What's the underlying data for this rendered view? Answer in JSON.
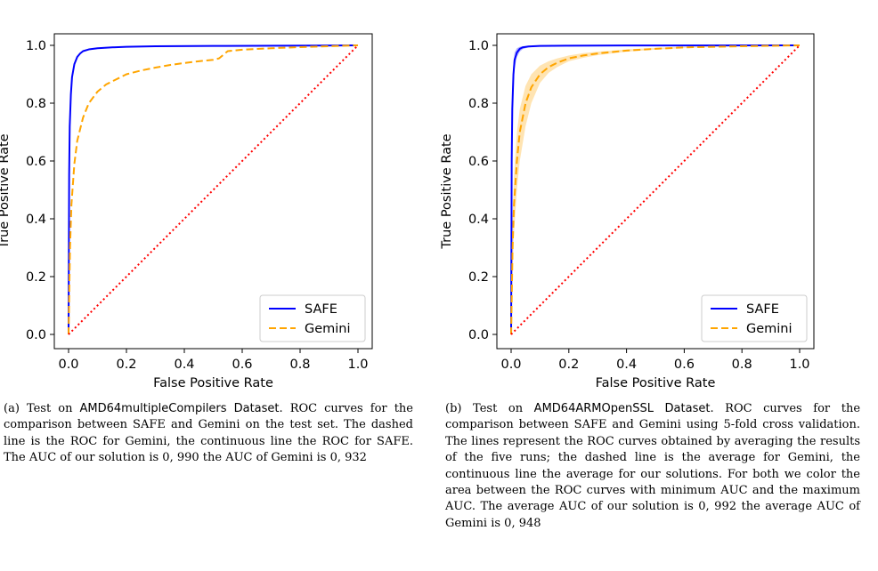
{
  "chart_data": [
    {
      "type": "line",
      "panel": "a",
      "xlabel": "False Positive Rate",
      "ylabel": "True Positive Rate",
      "xlim": [
        0.0,
        1.0
      ],
      "ylim": [
        0.0,
        1.0
      ],
      "xticks": [
        "0.0",
        "0.2",
        "0.4",
        "0.6",
        "0.8",
        "1.0"
      ],
      "yticks": [
        "0.0",
        "0.2",
        "0.4",
        "0.6",
        "0.8",
        "1.0"
      ],
      "grid": false,
      "legend_position": "bottom-right",
      "series": [
        {
          "name": "SAFE",
          "style": "solid",
          "color": "#0000ff",
          "x": [
            0.0,
            0.002,
            0.004,
            0.008,
            0.012,
            0.02,
            0.03,
            0.04,
            0.05,
            0.07,
            0.1,
            0.15,
            0.2,
            0.3,
            0.5,
            1.0
          ],
          "y": [
            0.0,
            0.55,
            0.72,
            0.83,
            0.89,
            0.935,
            0.96,
            0.972,
            0.98,
            0.986,
            0.99,
            0.993,
            0.995,
            0.997,
            0.998,
            1.0
          ]
        },
        {
          "name": "Gemini",
          "style": "dashed",
          "color": "#ffa500",
          "x": [
            0.0,
            0.005,
            0.01,
            0.02,
            0.03,
            0.05,
            0.07,
            0.1,
            0.13,
            0.16,
            0.2,
            0.25,
            0.3,
            0.35,
            0.4,
            0.45,
            0.5,
            0.52,
            0.55,
            0.6,
            0.7,
            0.8,
            0.9,
            1.0
          ],
          "y": [
            0.0,
            0.3,
            0.45,
            0.59,
            0.67,
            0.75,
            0.8,
            0.84,
            0.865,
            0.88,
            0.9,
            0.913,
            0.923,
            0.932,
            0.939,
            0.945,
            0.95,
            0.955,
            0.98,
            0.985,
            0.99,
            0.994,
            0.997,
            1.0
          ]
        },
        {
          "name": "",
          "style": "dotted",
          "color": "#ff0000",
          "x": [
            0.0,
            1.0
          ],
          "y": [
            0.0,
            1.0
          ]
        }
      ]
    },
    {
      "type": "line",
      "panel": "b",
      "xlabel": "False Positive Rate",
      "ylabel": "True Positive Rate",
      "xlim": [
        0.0,
        1.0
      ],
      "ylim": [
        0.0,
        1.0
      ],
      "xticks": [
        "0.0",
        "0.2",
        "0.4",
        "0.6",
        "0.8",
        "1.0"
      ],
      "yticks": [
        "0.0",
        "0.2",
        "0.4",
        "0.6",
        "0.8",
        "1.0"
      ],
      "grid": false,
      "legend_position": "bottom-right",
      "series": [
        {
          "name": "SAFE",
          "style": "solid",
          "color": "#0000ff",
          "x": [
            0.0,
            0.002,
            0.004,
            0.008,
            0.012,
            0.02,
            0.03,
            0.04,
            0.06,
            0.1,
            0.2,
            0.4,
            1.0
          ],
          "y": [
            0.0,
            0.6,
            0.78,
            0.9,
            0.95,
            0.975,
            0.988,
            0.993,
            0.996,
            0.998,
            0.999,
            0.9995,
            1.0
          ],
          "band_lower": [
            0.0,
            0.5,
            0.7,
            0.85,
            0.92,
            0.96,
            0.978,
            0.987,
            0.993,
            0.996,
            0.998,
            0.999,
            1.0
          ],
          "band_upper": [
            0.0,
            0.7,
            0.85,
            0.94,
            0.975,
            0.99,
            0.995,
            0.997,
            0.998,
            0.999,
            1.0,
            1.0,
            1.0
          ]
        },
        {
          "name": "Gemini",
          "style": "dashed",
          "color": "#ffa500",
          "x": [
            0.0,
            0.005,
            0.01,
            0.02,
            0.03,
            0.05,
            0.07,
            0.1,
            0.13,
            0.16,
            0.2,
            0.25,
            0.3,
            0.4,
            0.5,
            0.6,
            0.8,
            1.0
          ],
          "y": [
            0.0,
            0.3,
            0.45,
            0.6,
            0.7,
            0.8,
            0.855,
            0.9,
            0.925,
            0.94,
            0.955,
            0.965,
            0.972,
            0.982,
            0.988,
            0.993,
            0.997,
            1.0
          ],
          "band_lower": [
            0.0,
            0.2,
            0.35,
            0.5,
            0.6,
            0.72,
            0.8,
            0.87,
            0.905,
            0.925,
            0.945,
            0.957,
            0.966,
            0.978,
            0.985,
            0.991,
            0.996,
            1.0
          ],
          "band_upper": [
            0.0,
            0.4,
            0.55,
            0.7,
            0.78,
            0.86,
            0.9,
            0.93,
            0.945,
            0.955,
            0.965,
            0.973,
            0.978,
            0.986,
            0.991,
            0.995,
            0.998,
            1.0
          ]
        },
        {
          "name": "",
          "style": "dotted",
          "color": "#ff0000",
          "x": [
            0.0,
            1.0
          ],
          "y": [
            0.0,
            1.0
          ]
        }
      ]
    }
  ],
  "captions": {
    "a": {
      "prefix": "(a) Test on ",
      "dataset": "AMD64multipleCompilers Dataset",
      "body": ". ROC curves for the comparison between SAFE and Gemini on the test set. The dashed line is the ROC for Gemini, the continuous line the ROC for SAFE. The AUC of our solution is 0, 990 the AUC of Gemini is 0, 932"
    },
    "b": {
      "prefix": "(b) Test on ",
      "dataset": "AMD64ARMOpenSSL Dataset",
      "body": ". ROC curves for the comparison between SAFE and Gemini using 5-fold cross validation. The lines represent the ROC curves obtained by averaging the results of the five runs; the dashed line is the average for Gemini, the continuous line the average for our solutions. For both we color the area between the ROC curves with minimum AUC and the maximum AUC. The average AUC of our solution is 0, 992 the average AUC of Gemini is 0, 948"
    }
  }
}
